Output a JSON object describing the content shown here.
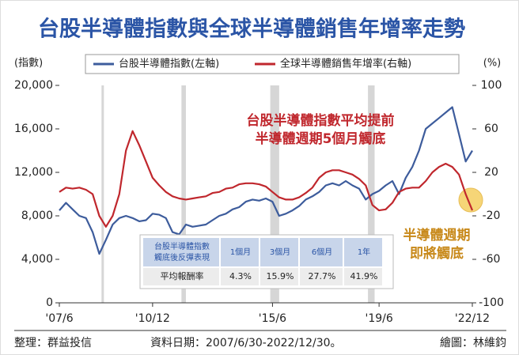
{
  "chart_data": {
    "type": "line",
    "title": "台股半導體指數與全球半導體銷售年增率走勢",
    "y_label": "(指數)",
    "y2_label": "(%)",
    "x": [
      "2007-06",
      "2007-09",
      "2007-12",
      "2008-03",
      "2008-06",
      "2008-09",
      "2008-12",
      "2009-03",
      "2009-06",
      "2009-09",
      "2009-12",
      "2010-03",
      "2010-06",
      "2010-09",
      "2010-12",
      "2011-03",
      "2011-06",
      "2011-09",
      "2011-12",
      "2012-03",
      "2012-06",
      "2012-09",
      "2012-12",
      "2013-03",
      "2013-06",
      "2013-09",
      "2013-12",
      "2014-03",
      "2014-06",
      "2014-09",
      "2014-12",
      "2015-03",
      "2015-06",
      "2015-09",
      "2015-12",
      "2016-03",
      "2016-06",
      "2016-09",
      "2016-12",
      "2017-03",
      "2017-06",
      "2017-09",
      "2017-12",
      "2018-03",
      "2018-06",
      "2018-09",
      "2018-12",
      "2019-03",
      "2019-06",
      "2019-09",
      "2019-12",
      "2020-03",
      "2020-06",
      "2020-09",
      "2020-12",
      "2021-03",
      "2021-06",
      "2021-09",
      "2021-12",
      "2022-03",
      "2022-06",
      "2022-09",
      "2022-12"
    ],
    "xlim": [
      "2007-06",
      "2022-12"
    ],
    "xticks": [
      {
        "value": "2007-06",
        "label": "'07/6"
      },
      {
        "value": "2010-12",
        "label": "'10/12"
      },
      {
        "value": "2015-06",
        "label": "'15/6"
      },
      {
        "value": "2019-06",
        "label": "'19/6"
      },
      {
        "value": "2022-12",
        "label": "'22/12"
      }
    ],
    "ylim": [
      0,
      20000
    ],
    "yticks": [
      0,
      {
        "value": 4000,
        "label": "4,000"
      },
      {
        "value": 8000,
        "label": "8,000"
      },
      {
        "value": 12000,
        "label": "12,000"
      },
      {
        "value": 16000,
        "label": "16,000"
      },
      {
        "value": 20000,
        "label": "20,000"
      }
    ],
    "y2lim": [
      -100,
      100
    ],
    "y2ticks": [
      -100,
      -60,
      -20,
      20,
      60,
      100
    ],
    "shaded_periods": [
      [
        "2009-01",
        "2009-02"
      ],
      [
        "2012-01",
        "2012-03"
      ],
      [
        "2015-05",
        "2015-09"
      ],
      [
        "2019-01",
        "2019-04"
      ]
    ],
    "series": [
      {
        "name": "台股半導體指數(左軸)",
        "color": "#3d5c9c",
        "values": [
          8500,
          9200,
          8600,
          8000,
          7800,
          6500,
          4500,
          5800,
          7200,
          7800,
          8000,
          7800,
          7500,
          7600,
          8200,
          8100,
          7800,
          6500,
          6300,
          7200,
          7000,
          7100,
          7200,
          7600,
          8000,
          8200,
          8600,
          8800,
          9300,
          9500,
          9400,
          9600,
          9300,
          8000,
          8200,
          8500,
          8900,
          9500,
          9800,
          10200,
          10800,
          11000,
          10800,
          11200,
          10800,
          10500,
          9500,
          10000,
          10300,
          10800,
          11200,
          10000,
          11500,
          12500,
          14000,
          16000,
          16500,
          17000,
          17500,
          18000,
          15500,
          13000,
          14000
        ]
      },
      {
        "name": "全球半導體銷售年增率(右軸)",
        "color": "#c0272d",
        "axis": "y2",
        "values": [
          2,
          6,
          5,
          6,
          4,
          0,
          -20,
          -30,
          -20,
          0,
          40,
          58,
          45,
          30,
          15,
          8,
          2,
          -2,
          -4,
          -5,
          -4,
          -3,
          -2,
          1,
          2,
          5,
          6,
          9,
          10,
          10,
          9,
          7,
          2,
          -3,
          -5,
          -5,
          -3,
          1,
          6,
          15,
          20,
          22,
          22,
          20,
          18,
          14,
          8,
          -10,
          -15,
          -14,
          -8,
          2,
          5,
          6,
          6,
          12,
          20,
          25,
          28,
          25,
          18,
          0,
          -15
        ]
      }
    ],
    "annotations": [
      {
        "lines": [
          "台股半導體指數平均提前",
          "半導體週期5個月觸底"
        ],
        "color": "#c0272d"
      },
      {
        "lines": [
          "半導體週期",
          "即將觸底"
        ],
        "color": "#c8891a"
      }
    ],
    "table": {
      "header": [
        "台股半導體指數\n觸底後反彈表現",
        "1個月",
        "3個月",
        "6個月",
        "1年"
      ],
      "row": [
        "平均報酬率",
        "4.3%",
        "15.9%",
        "27.7%",
        "41.9%"
      ]
    },
    "footer": [
      "整理：群益投信",
      "資料日期：2007/6/30-2022/12/30。",
      "繪圖：林維鈞"
    ]
  }
}
